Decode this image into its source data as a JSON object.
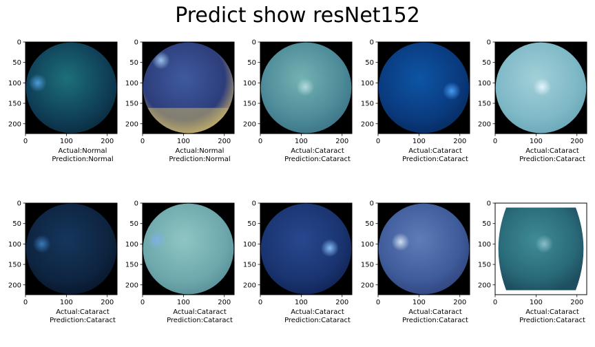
{
  "title": "Predict show resNet152",
  "chart_data": {
    "type": "image-grid",
    "title": "Predict show resNet152",
    "rows": 2,
    "cols": 5,
    "image_size": 224,
    "xlim": [
      0,
      224
    ],
    "ylim": [
      224,
      0
    ],
    "xticks": [
      0,
      100,
      200
    ],
    "yticks": [
      0,
      50,
      100,
      150,
      200
    ],
    "panels": [
      {
        "actual": "Actual:Normal",
        "prediction": "Prediction:Normal",
        "style": "teal-dark",
        "spot": [
          30,
          100
        ]
      },
      {
        "actual": "Actual:Normal",
        "prediction": "Prediction:Normal",
        "style": "blue-yellow",
        "spot": [
          45,
          45
        ]
      },
      {
        "actual": "Actual:Cataract",
        "prediction": "Prediction:Cataract",
        "style": "light-teal",
        "spot": [
          110,
          110
        ]
      },
      {
        "actual": "Actual:Cataract",
        "prediction": "Prediction:Cataract",
        "style": "deep-blue",
        "spot": [
          180,
          120
        ]
      },
      {
        "actual": "Actual:Cataract",
        "prediction": "Prediction:Cataract",
        "style": "pale-cyan",
        "spot": [
          115,
          110
        ]
      },
      {
        "actual": "Actual:Cataract",
        "prediction": "Prediction:Cataract",
        "style": "dark-navy",
        "spot": [
          40,
          100
        ]
      },
      {
        "actual": "Actual:Cataract",
        "prediction": "Prediction:Cataract",
        "style": "sea-green",
        "spot": [
          35,
          90
        ]
      },
      {
        "actual": "Actual:Cataract",
        "prediction": "Prediction:Cataract",
        "style": "navy",
        "spot": [
          170,
          110
        ]
      },
      {
        "actual": "Actual:Cataract",
        "prediction": "Prediction:Cataract",
        "style": "grey-blue",
        "spot": [
          55,
          95
        ]
      },
      {
        "actual": "Actual:Cataract",
        "prediction": "Prediction:Cataract",
        "style": "barrel-teal",
        "spot": [
          120,
          100
        ]
      }
    ]
  },
  "colors": {
    "teal-dark": {
      "c1": "#1d6f7a",
      "c2": "#0f3f58",
      "c3": "#0a2a3c",
      "spot": "#4f9fe0"
    },
    "blue-yellow": {
      "c1": "#3f5aa0",
      "c2": "#2d3d7a",
      "c3": "#c8b06a",
      "spot": "#a0c8f0"
    },
    "light-teal": {
      "c1": "#73b2b2",
      "c2": "#4c8a98",
      "c3": "#3a7285",
      "spot": "#b8dde0"
    },
    "deep-blue": {
      "c1": "#0d55a4",
      "c2": "#0a3a7e",
      "c3": "#062a5e",
      "spot": "#4aa0f8"
    },
    "pale-cyan": {
      "c1": "#a2d0d8",
      "c2": "#7eb8c6",
      "c3": "#6aa6b8",
      "spot": "#e8f6ff"
    },
    "dark-navy": {
      "c1": "#14365c",
      "c2": "#0e2440",
      "c3": "#07162a",
      "spot": "#3a7ec0"
    },
    "sea-green": {
      "c1": "#8fc6c4",
      "c2": "#6ea8ac",
      "c3": "#588e98",
      "spot": "#7fb0e8"
    },
    "navy": {
      "c1": "#27478e",
      "c2": "#1a3470",
      "c3": "#102254",
      "spot": "#8cc4ff"
    },
    "grey-blue": {
      "c1": "#5f7cb8",
      "c2": "#3f5b9a",
      "c3": "#2e437c",
      "spot": "#d8e4f4"
    },
    "barrel-teal": {
      "c1": "#3f8c96",
      "c2": "#2a6a78",
      "c3": "#1d4f60",
      "spot": "#8fc0cc"
    }
  }
}
